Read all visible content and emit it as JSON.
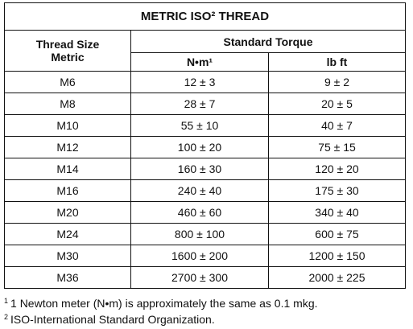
{
  "header": {
    "title": "METRIC ISO² THREAD"
  },
  "columns": {
    "thread_size": [
      "Thread Size",
      "Metric"
    ],
    "standard_torque": "Standard Torque",
    "units": [
      "N•m¹",
      "lb ft"
    ]
  },
  "table": {
    "rows": [
      [
        "M6",
        "12 ± 3",
        "9 ± 2"
      ],
      [
        "M8",
        "28 ± 7",
        "20 ± 5"
      ],
      [
        "M10",
        "55 ± 10",
        "40 ± 7"
      ],
      [
        "M12",
        "100 ± 20",
        "75 ± 15"
      ],
      [
        "M14",
        "160 ± 30",
        "120 ± 20"
      ],
      [
        "M16",
        "240 ± 40",
        "175 ± 30"
      ],
      [
        "M20",
        "460 ± 60",
        "340 ± 40"
      ],
      [
        "M24",
        "800 ± 100",
        "600 ± 75"
      ],
      [
        "M30",
        "1600 ± 200",
        "1200 ± 150"
      ],
      [
        "M36",
        "2700 ± 300",
        "2000 ± 225"
      ]
    ]
  },
  "footnotes": [
    {
      "mark": "1",
      "text": "1 Newton meter (N•m) is approximately the same as 0.1 mkg."
    },
    {
      "mark": "2",
      "text": "ISO-International Standard Organization."
    }
  ]
}
